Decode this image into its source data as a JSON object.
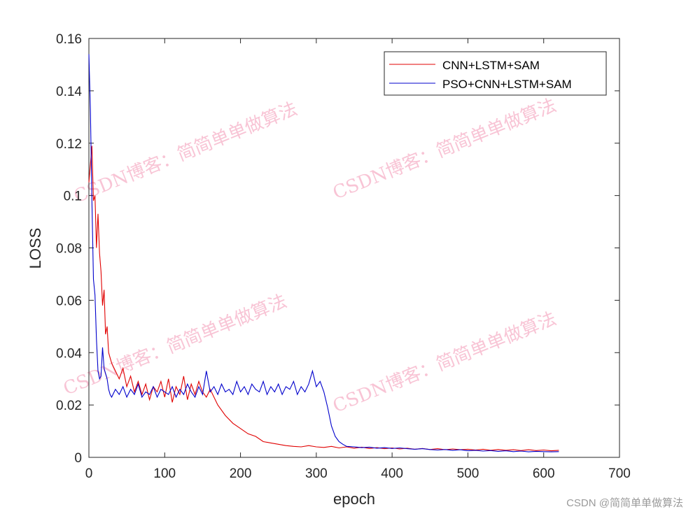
{
  "chart_data": {
    "type": "line",
    "title": "",
    "xlabel": "epoch",
    "ylabel": "LOSS",
    "xlim": [
      0,
      700
    ],
    "ylim": [
      0,
      0.16
    ],
    "xticks": [
      "0",
      "100",
      "200",
      "300",
      "400",
      "500",
      "600",
      "700"
    ],
    "yticks": [
      "0",
      "0.02",
      "0.04",
      "0.06",
      "0.08",
      "0.1",
      "0.12",
      "0.14",
      "0.16"
    ],
    "grid": false,
    "legend_placement": "top-right",
    "series": [
      {
        "name": "CNN+LSTM+SAM",
        "color": "#e00000",
        "x": [
          0,
          2,
          4,
          6,
          8,
          10,
          12,
          14,
          16,
          18,
          20,
          22,
          24,
          26,
          28,
          30,
          35,
          40,
          45,
          50,
          55,
          60,
          65,
          70,
          75,
          80,
          85,
          90,
          95,
          100,
          105,
          110,
          115,
          120,
          125,
          130,
          135,
          140,
          145,
          150,
          155,
          160,
          170,
          180,
          190,
          200,
          210,
          220,
          230,
          240,
          250,
          260,
          270,
          280,
          290,
          300,
          310,
          320,
          330,
          340,
          350,
          360,
          370,
          380,
          390,
          400,
          410,
          420,
          430,
          440,
          450,
          460,
          470,
          480,
          490,
          500,
          510,
          520,
          530,
          540,
          550,
          560,
          570,
          580,
          590,
          600,
          610,
          620
        ],
        "y": [
          0.105,
          0.112,
          0.119,
          0.098,
          0.1,
          0.08,
          0.093,
          0.078,
          0.071,
          0.058,
          0.064,
          0.047,
          0.05,
          0.04,
          0.038,
          0.036,
          0.033,
          0.03,
          0.034,
          0.027,
          0.031,
          0.025,
          0.029,
          0.024,
          0.028,
          0.022,
          0.027,
          0.025,
          0.029,
          0.023,
          0.03,
          0.021,
          0.027,
          0.024,
          0.031,
          0.022,
          0.028,
          0.024,
          0.029,
          0.025,
          0.023,
          0.026,
          0.02,
          0.016,
          0.013,
          0.011,
          0.009,
          0.008,
          0.006,
          0.0055,
          0.005,
          0.0045,
          0.0042,
          0.004,
          0.0045,
          0.004,
          0.0038,
          0.0042,
          0.0036,
          0.004,
          0.0035,
          0.0039,
          0.0034,
          0.0037,
          0.0033,
          0.0036,
          0.0032,
          0.0035,
          0.0031,
          0.0034,
          0.003,
          0.0033,
          0.0029,
          0.0032,
          0.0029,
          0.0031,
          0.0028,
          0.0031,
          0.0027,
          0.003,
          0.0027,
          0.0029,
          0.0026,
          0.0029,
          0.0026,
          0.0028,
          0.0025,
          0.0027
        ]
      },
      {
        "name": "PSO+CNN+LSTM+SAM",
        "color": "#0000cc",
        "x": [
          0,
          2,
          4,
          6,
          8,
          10,
          12,
          14,
          16,
          18,
          20,
          22,
          24,
          26,
          28,
          30,
          35,
          40,
          45,
          50,
          55,
          60,
          65,
          70,
          75,
          80,
          85,
          90,
          95,
          100,
          105,
          110,
          115,
          120,
          125,
          130,
          135,
          140,
          145,
          150,
          155,
          160,
          165,
          170,
          175,
          180,
          185,
          190,
          195,
          200,
          205,
          210,
          215,
          220,
          225,
          230,
          235,
          240,
          245,
          250,
          255,
          260,
          265,
          270,
          275,
          280,
          285,
          290,
          295,
          300,
          305,
          310,
          315,
          320,
          325,
          330,
          335,
          340,
          350,
          360,
          370,
          380,
          390,
          400,
          410,
          420,
          430,
          440,
          450,
          460,
          470,
          480,
          490,
          500,
          510,
          520,
          530,
          540,
          550,
          560,
          570,
          580,
          590,
          600,
          610,
          620
        ],
        "y": [
          0.154,
          0.132,
          0.098,
          0.068,
          0.062,
          0.045,
          0.033,
          0.03,
          0.031,
          0.042,
          0.034,
          0.032,
          0.03,
          0.026,
          0.024,
          0.023,
          0.026,
          0.024,
          0.027,
          0.023,
          0.026,
          0.024,
          0.028,
          0.023,
          0.025,
          0.024,
          0.027,
          0.023,
          0.026,
          0.025,
          0.024,
          0.027,
          0.023,
          0.026,
          0.024,
          0.028,
          0.025,
          0.023,
          0.027,
          0.024,
          0.033,
          0.025,
          0.027,
          0.024,
          0.028,
          0.025,
          0.026,
          0.024,
          0.029,
          0.025,
          0.027,
          0.024,
          0.028,
          0.026,
          0.025,
          0.029,
          0.024,
          0.027,
          0.025,
          0.028,
          0.024,
          0.027,
          0.026,
          0.029,
          0.024,
          0.027,
          0.025,
          0.028,
          0.033,
          0.027,
          0.029,
          0.025,
          0.019,
          0.012,
          0.008,
          0.006,
          0.005,
          0.0042,
          0.004,
          0.0037,
          0.0039,
          0.0035,
          0.0037,
          0.0034,
          0.0036,
          0.0033,
          0.0031,
          0.0033,
          0.003,
          0.0028,
          0.003,
          0.0027,
          0.0029,
          0.0025,
          0.0027,
          0.0024,
          0.0026,
          0.0023,
          0.0025,
          0.0022,
          0.0024,
          0.0021,
          0.0023,
          0.0022,
          0.0021,
          0.0022
        ]
      }
    ]
  },
  "watermark": {
    "text": "CSDN博客：简简单单做算法",
    "footer": "CSDN @简简单单做算法"
  }
}
